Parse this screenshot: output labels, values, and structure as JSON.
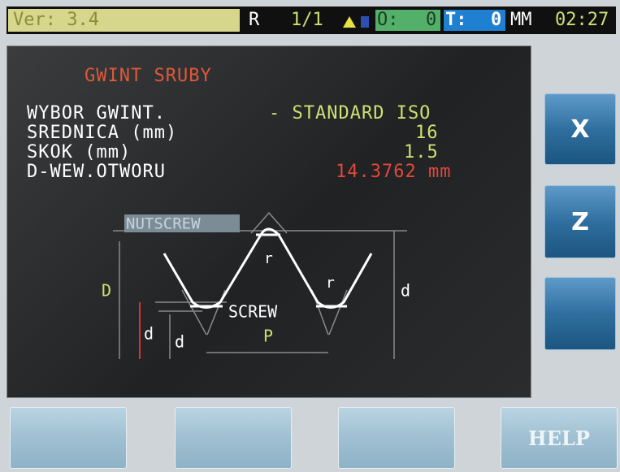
{
  "status_bar": {
    "version": "Ver: 3.4",
    "mode": "R",
    "page": "1/1",
    "o_label": "O:",
    "o_value": "0",
    "t_label": "T:",
    "t_value": "0",
    "units": "MM",
    "time": "02:27"
  },
  "panel": {
    "title": "GWINT SRUBY",
    "rows": [
      [
        "WYBOR GWINT.",
        "- STANDARD ISO"
      ],
      [
        "SREDNICA (mm)",
        "16"
      ],
      [
        "SKOK (mm)",
        "1.5"
      ],
      [
        "D-WEW.OTWORU",
        "14.3762 mm"
      ]
    ]
  },
  "diagram": {
    "nut_label": "NUTSCREW",
    "screw_label": "SCREW",
    "outer_d": "D",
    "d_left": "d",
    "d_mid": "d",
    "d_right": "d",
    "pitch": "P",
    "radius_top": "r",
    "radius_right": "r"
  },
  "side_buttons": [
    "X",
    "Z"
  ],
  "bottom_buttons": [
    "HELP"
  ]
}
